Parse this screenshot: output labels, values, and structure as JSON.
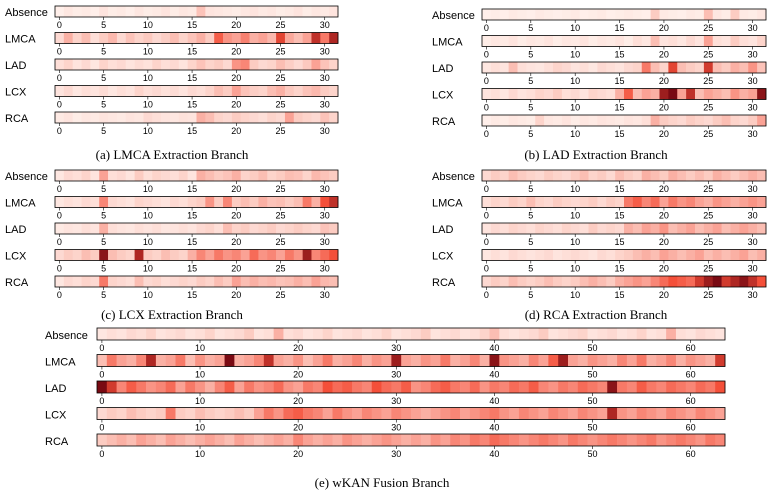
{
  "figure": {
    "rows": [
      "Absence",
      "LMCA",
      "LAD",
      "LCX",
      "RCA"
    ],
    "colors": {
      "low": "#fff5f0",
      "mid": "#f44f39",
      "high": "#67000d",
      "frame": "#000000"
    }
  },
  "chart_data": [
    {
      "type": "heatmap",
      "caption": "(a) LMCA Extraction Branch",
      "columns": 32,
      "xticks": [
        0,
        5,
        10,
        15,
        20,
        25,
        30
      ],
      "rows": [
        "Absence",
        "LMCA",
        "LAD",
        "LCX",
        "RCA"
      ],
      "values": [
        [
          0.02,
          0.05,
          0.03,
          0.04,
          0.02,
          0.06,
          0.03,
          0.04,
          0.02,
          0.05,
          0.03,
          0.04,
          0.06,
          0.03,
          0.05,
          0.04,
          0.18,
          0.06,
          0.05,
          0.04,
          0.03,
          0.05,
          0.06,
          0.04,
          0.05,
          0.03,
          0.04,
          0.06,
          0.03,
          0.05,
          0.04,
          0.06
        ],
        [
          0.1,
          0.25,
          0.12,
          0.2,
          0.08,
          0.15,
          0.22,
          0.1,
          0.18,
          0.12,
          0.16,
          0.1,
          0.14,
          0.2,
          0.12,
          0.18,
          0.25,
          0.15,
          0.55,
          0.35,
          0.3,
          0.42,
          0.25,
          0.3,
          0.22,
          0.65,
          0.28,
          0.2,
          0.3,
          0.75,
          0.45,
          0.8
        ],
        [
          0.08,
          0.12,
          0.06,
          0.1,
          0.05,
          0.12,
          0.08,
          0.1,
          0.06,
          0.09,
          0.07,
          0.12,
          0.08,
          0.1,
          0.06,
          0.12,
          0.18,
          0.12,
          0.15,
          0.1,
          0.35,
          0.4,
          0.15,
          0.1,
          0.12,
          0.2,
          0.14,
          0.1,
          0.16,
          0.3,
          0.18,
          0.12
        ],
        [
          0.06,
          0.1,
          0.05,
          0.08,
          0.06,
          0.09,
          0.05,
          0.08,
          0.06,
          0.12,
          0.08,
          0.1,
          0.07,
          0.09,
          0.06,
          0.1,
          0.08,
          0.12,
          0.2,
          0.15,
          0.3,
          0.18,
          0.14,
          0.12,
          0.2,
          0.25,
          0.16,
          0.12,
          0.18,
          0.22,
          0.15,
          0.12
        ],
        [
          0.04,
          0.06,
          0.03,
          0.05,
          0.04,
          0.06,
          0.05,
          0.04,
          0.06,
          0.05,
          0.1,
          0.08,
          0.06,
          0.05,
          0.07,
          0.06,
          0.25,
          0.2,
          0.12,
          0.1,
          0.15,
          0.12,
          0.1,
          0.08,
          0.12,
          0.1,
          0.3,
          0.15,
          0.12,
          0.1,
          0.18,
          0.12
        ]
      ]
    },
    {
      "type": "heatmap",
      "caption": "(b) LAD Extraction Branch",
      "columns": 32,
      "xticks": [
        0,
        5,
        10,
        15,
        20,
        25,
        30
      ],
      "rows": [
        "Absence",
        "LMCA",
        "LAD",
        "LCX",
        "RCA"
      ],
      "values": [
        [
          0.02,
          0.03,
          0.02,
          0.04,
          0.03,
          0.02,
          0.04,
          0.03,
          0.02,
          0.03,
          0.04,
          0.02,
          0.03,
          0.04,
          0.02,
          0.03,
          0.04,
          0.03,
          0.02,
          0.15,
          0.04,
          0.03,
          0.02,
          0.04,
          0.03,
          0.2,
          0.05,
          0.03,
          0.15,
          0.04,
          0.03,
          0.05
        ],
        [
          0.03,
          0.05,
          0.04,
          0.06,
          0.03,
          0.05,
          0.04,
          0.06,
          0.03,
          0.05,
          0.04,
          0.06,
          0.03,
          0.05,
          0.04,
          0.06,
          0.03,
          0.08,
          0.05,
          0.2,
          0.06,
          0.08,
          0.05,
          0.1,
          0.06,
          0.3,
          0.08,
          0.06,
          0.15,
          0.08,
          0.06,
          0.12
        ],
        [
          0.05,
          0.08,
          0.06,
          0.2,
          0.08,
          0.06,
          0.05,
          0.08,
          0.12,
          0.1,
          0.06,
          0.08,
          0.05,
          0.1,
          0.08,
          0.06,
          0.1,
          0.12,
          0.45,
          0.2,
          0.12,
          0.65,
          0.2,
          0.15,
          0.12,
          0.7,
          0.2,
          0.15,
          0.25,
          0.2,
          0.35,
          0.18
        ],
        [
          0.06,
          0.08,
          0.05,
          0.1,
          0.06,
          0.08,
          0.12,
          0.1,
          0.15,
          0.08,
          0.1,
          0.06,
          0.12,
          0.1,
          0.08,
          0.25,
          0.55,
          0.2,
          0.3,
          0.25,
          0.85,
          0.95,
          0.3,
          0.75,
          0.2,
          0.3,
          0.25,
          0.2,
          0.35,
          0.25,
          0.3,
          0.9
        ],
        [
          0.02,
          0.04,
          0.03,
          0.05,
          0.04,
          0.03,
          0.12,
          0.05,
          0.04,
          0.06,
          0.03,
          0.05,
          0.04,
          0.06,
          0.05,
          0.04,
          0.06,
          0.05,
          0.08,
          0.25,
          0.15,
          0.12,
          0.1,
          0.15,
          0.12,
          0.1,
          0.15,
          0.2,
          0.12,
          0.1,
          0.15,
          0.3
        ]
      ]
    },
    {
      "type": "heatmap",
      "caption": "(c) LCX Extraction Branch",
      "columns": 32,
      "xticks": [
        0,
        5,
        10,
        15,
        20,
        25,
        30
      ],
      "rows": [
        "Absence",
        "LMCA",
        "LAD",
        "LCX",
        "RCA"
      ],
      "values": [
        [
          0.05,
          0.1,
          0.08,
          0.12,
          0.06,
          0.3,
          0.08,
          0.1,
          0.06,
          0.15,
          0.08,
          0.12,
          0.1,
          0.08,
          0.12,
          0.06,
          0.25,
          0.2,
          0.15,
          0.18,
          0.25,
          0.12,
          0.15,
          0.2,
          0.12,
          0.15,
          0.2,
          0.18,
          0.12,
          0.22,
          0.18,
          0.15
        ],
        [
          0.05,
          0.08,
          0.06,
          0.1,
          0.08,
          0.4,
          0.1,
          0.08,
          0.06,
          0.12,
          0.1,
          0.08,
          0.06,
          0.1,
          0.08,
          0.12,
          0.15,
          0.35,
          0.15,
          0.4,
          0.15,
          0.2,
          0.15,
          0.25,
          0.18,
          0.2,
          0.15,
          0.2,
          0.45,
          0.25,
          0.6,
          0.75
        ],
        [
          0.04,
          0.06,
          0.05,
          0.08,
          0.06,
          0.25,
          0.08,
          0.06,
          0.05,
          0.08,
          0.06,
          0.08,
          0.05,
          0.06,
          0.08,
          0.06,
          0.1,
          0.12,
          0.08,
          0.2,
          0.12,
          0.15,
          0.1,
          0.12,
          0.15,
          0.1,
          0.12,
          0.15,
          0.12,
          0.1,
          0.18,
          0.15
        ],
        [
          0.1,
          0.15,
          0.12,
          0.2,
          0.15,
          0.9,
          0.2,
          0.15,
          0.12,
          0.8,
          0.15,
          0.12,
          0.2,
          0.15,
          0.12,
          0.25,
          0.4,
          0.3,
          0.45,
          0.35,
          0.4,
          0.3,
          0.5,
          0.35,
          0.4,
          0.3,
          0.45,
          0.35,
          0.85,
          0.4,
          0.5,
          0.6
        ],
        [
          0.05,
          0.1,
          0.08,
          0.12,
          0.1,
          0.45,
          0.12,
          0.1,
          0.08,
          0.2,
          0.1,
          0.12,
          0.08,
          0.1,
          0.12,
          0.1,
          0.15,
          0.12,
          0.2,
          0.15,
          0.3,
          0.2,
          0.25,
          0.2,
          0.22,
          0.18,
          0.2,
          0.25,
          0.2,
          0.3,
          0.22,
          0.2
        ]
      ]
    },
    {
      "type": "heatmap",
      "caption": "(d) RCA Extraction Branch",
      "columns": 32,
      "xticks": [
        0,
        5,
        10,
        15,
        20,
        25,
        30
      ],
      "rows": [
        "Absence",
        "LMCA",
        "LAD",
        "LCX",
        "RCA"
      ],
      "values": [
        [
          0.1,
          0.15,
          0.12,
          0.2,
          0.15,
          0.12,
          0.1,
          0.15,
          0.12,
          0.1,
          0.15,
          0.2,
          0.12,
          0.15,
          0.1,
          0.2,
          0.15,
          0.12,
          0.25,
          0.2,
          0.15,
          0.25,
          0.2,
          0.15,
          0.2,
          0.15,
          0.25,
          0.2,
          0.15,
          0.2,
          0.25,
          0.2
        ],
        [
          0.08,
          0.12,
          0.1,
          0.15,
          0.12,
          0.2,
          0.12,
          0.1,
          0.15,
          0.12,
          0.1,
          0.12,
          0.15,
          0.1,
          0.15,
          0.12,
          0.45,
          0.55,
          0.4,
          0.5,
          0.3,
          0.45,
          0.35,
          0.4,
          0.3,
          0.25,
          0.35,
          0.3,
          0.25,
          0.3,
          0.35,
          0.3
        ],
        [
          0.06,
          0.1,
          0.08,
          0.12,
          0.1,
          0.08,
          0.12,
          0.1,
          0.08,
          0.12,
          0.1,
          0.08,
          0.15,
          0.1,
          0.12,
          0.1,
          0.25,
          0.2,
          0.3,
          0.25,
          0.35,
          0.2,
          0.25,
          0.3,
          0.2,
          0.25,
          0.3,
          0.2,
          0.25,
          0.3,
          0.25,
          0.2
        ],
        [
          0.05,
          0.08,
          0.06,
          0.1,
          0.08,
          0.06,
          0.08,
          0.1,
          0.06,
          0.08,
          0.1,
          0.08,
          0.06,
          0.1,
          0.08,
          0.12,
          0.15,
          0.2,
          0.25,
          0.2,
          0.3,
          0.25,
          0.2,
          0.25,
          0.3,
          0.2,
          0.25,
          0.2,
          0.25,
          0.3,
          0.2,
          0.25
        ],
        [
          0.1,
          0.15,
          0.12,
          0.2,
          0.15,
          0.12,
          0.15,
          0.2,
          0.15,
          0.12,
          0.15,
          0.2,
          0.25,
          0.2,
          0.15,
          0.25,
          0.3,
          0.35,
          0.3,
          0.4,
          0.5,
          0.6,
          0.55,
          0.5,
          0.7,
          0.85,
          0.95,
          0.7,
          0.8,
          0.9,
          0.75,
          0.6
        ]
      ]
    },
    {
      "type": "heatmap",
      "caption": "(e) wKAN Fusion Branch",
      "columns": 64,
      "xticks": [
        0,
        10,
        20,
        30,
        40,
        50,
        60
      ],
      "rows": [
        "Absence",
        "LMCA",
        "LAD",
        "LCX",
        "RCA"
      ],
      "values": [
        [
          0.05,
          0.08,
          0.06,
          0.1,
          0.08,
          0.12,
          0.06,
          0.08,
          0.1,
          0.06,
          0.08,
          0.12,
          0.06,
          0.08,
          0.1,
          0.15,
          0.06,
          0.08,
          0.25,
          0.08,
          0.1,
          0.06,
          0.08,
          0.12,
          0.06,
          0.08,
          0.1,
          0.06,
          0.08,
          0.12,
          0.06,
          0.08,
          0.1,
          0.15,
          0.06,
          0.08,
          0.1,
          0.06,
          0.08,
          0.12,
          0.2,
          0.08,
          0.06,
          0.08,
          0.1,
          0.15,
          0.06,
          0.08,
          0.1,
          0.12,
          0.06,
          0.08,
          0.1,
          0.06,
          0.08,
          0.12,
          0.06,
          0.08,
          0.25,
          0.08,
          0.06,
          0.1,
          0.08,
          0.06
        ],
        [
          0.2,
          0.45,
          0.3,
          0.25,
          0.4,
          0.8,
          0.25,
          0.3,
          0.45,
          0.2,
          0.35,
          0.25,
          0.3,
          0.95,
          0.25,
          0.3,
          0.4,
          0.75,
          0.3,
          0.25,
          0.35,
          0.2,
          0.3,
          0.45,
          0.25,
          0.3,
          0.4,
          0.25,
          0.35,
          0.3,
          0.85,
          0.3,
          0.25,
          0.35,
          0.3,
          0.45,
          0.25,
          0.3,
          0.4,
          0.25,
          0.9,
          0.35,
          0.3,
          0.25,
          0.4,
          0.3,
          0.55,
          0.85,
          0.3,
          0.25,
          0.35,
          0.3,
          0.25,
          0.4,
          0.3,
          0.45,
          0.25,
          0.3,
          0.4,
          0.25,
          0.35,
          0.3,
          0.25,
          0.7
        ],
        [
          0.95,
          0.7,
          0.4,
          0.55,
          0.45,
          0.35,
          0.4,
          0.5,
          0.3,
          0.45,
          0.35,
          0.25,
          0.4,
          0.55,
          0.3,
          0.45,
          0.35,
          0.4,
          0.5,
          0.35,
          0.3,
          0.45,
          0.4,
          0.6,
          0.5,
          0.55,
          0.45,
          0.4,
          0.6,
          0.5,
          0.45,
          0.55,
          0.35,
          0.4,
          0.5,
          0.55,
          0.45,
          0.4,
          0.5,
          0.35,
          0.45,
          0.4,
          0.5,
          0.45,
          0.55,
          0.4,
          0.35,
          0.45,
          0.4,
          0.5,
          0.45,
          0.4,
          0.9,
          0.45,
          0.4,
          0.55,
          0.45,
          0.4,
          0.5,
          0.45,
          0.4,
          0.5,
          0.45,
          0.6
        ],
        [
          0.1,
          0.15,
          0.12,
          0.2,
          0.15,
          0.12,
          0.15,
          0.45,
          0.15,
          0.12,
          0.2,
          0.15,
          0.12,
          0.15,
          0.2,
          0.15,
          0.3,
          0.45,
          0.35,
          0.5,
          0.55,
          0.45,
          0.4,
          0.3,
          0.45,
          0.35,
          0.3,
          0.4,
          0.35,
          0.3,
          0.4,
          0.35,
          0.3,
          0.25,
          0.3,
          0.35,
          0.4,
          0.3,
          0.35,
          0.4,
          0.45,
          0.35,
          0.3,
          0.4,
          0.35,
          0.3,
          0.4,
          0.35,
          0.3,
          0.4,
          0.35,
          0.3,
          0.8,
          0.35,
          0.3,
          0.4,
          0.35,
          0.3,
          0.4,
          0.35,
          0.3,
          0.4,
          0.35,
          0.3
        ],
        [
          0.15,
          0.2,
          0.25,
          0.2,
          0.3,
          0.25,
          0.2,
          0.3,
          0.25,
          0.2,
          0.25,
          0.3,
          0.25,
          0.2,
          0.3,
          0.25,
          0.2,
          0.25,
          0.3,
          0.25,
          0.4,
          0.3,
          0.25,
          0.3,
          0.25,
          0.35,
          0.3,
          0.25,
          0.3,
          0.35,
          0.3,
          0.25,
          0.3,
          0.25,
          0.35,
          0.3,
          0.4,
          0.35,
          0.45,
          0.4,
          0.5,
          0.45,
          0.4,
          0.35,
          0.4,
          0.45,
          0.4,
          0.35,
          0.45,
          0.4,
          0.35,
          0.4,
          0.45,
          0.4,
          0.35,
          0.4,
          0.45,
          0.35,
          0.4,
          0.45,
          0.4,
          0.35,
          0.45,
          0.4
        ]
      ]
    }
  ]
}
